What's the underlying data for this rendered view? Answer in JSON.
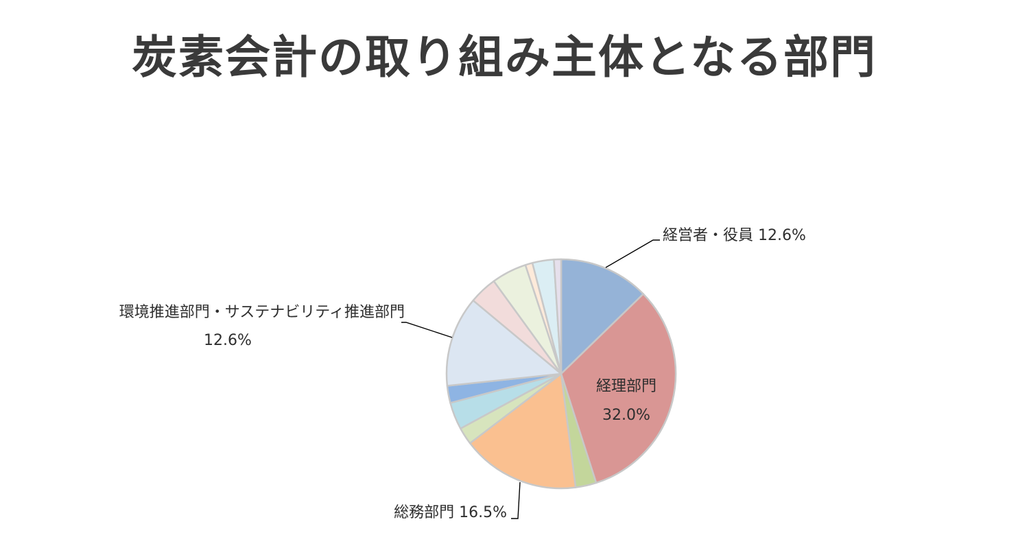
{
  "chart_data": {
    "type": "pie",
    "title": "炭素会計の取り組み主体となる部門",
    "start_angle": "12 o'clock, clockwise",
    "slices": [
      {
        "name": "経営者・役員",
        "value": 12.6,
        "label": "経営者・役員 12.6%",
        "color": "#95B3D7"
      },
      {
        "name": "経理部門",
        "value": 32.0,
        "label": "32.0%",
        "name_label": "経理部門",
        "color": "#D99694"
      },
      {
        "value": 2.9,
        "color": "#C3D69B"
      },
      {
        "name": "総務部門",
        "value": 16.5,
        "label": "総務部門 16.5%",
        "color": "#FAC090"
      },
      {
        "value": 2.4,
        "color": "#D7E4BD"
      },
      {
        "value": 3.8,
        "color": "#B7DEE8"
      },
      {
        "value": 2.4,
        "color": "#8EB4E3"
      },
      {
        "name": "環境推進部門・サステナビリティ推進部門",
        "value": 12.6,
        "label": "環境推進部門・サステナビリティ推進部門",
        "label2": "12.6%",
        "color": "#DCE6F2"
      },
      {
        "value": 3.9,
        "color": "#F2DCDB"
      },
      {
        "value": 4.9,
        "color": "#EBF1DE"
      },
      {
        "value": 1.0,
        "color": "#FDEADA"
      },
      {
        "value": 3.0,
        "color": "#DBEEF4"
      },
      {
        "value": 1.0,
        "color": "#E6E0EC"
      }
    ],
    "border_color": "#C8C8C8"
  }
}
